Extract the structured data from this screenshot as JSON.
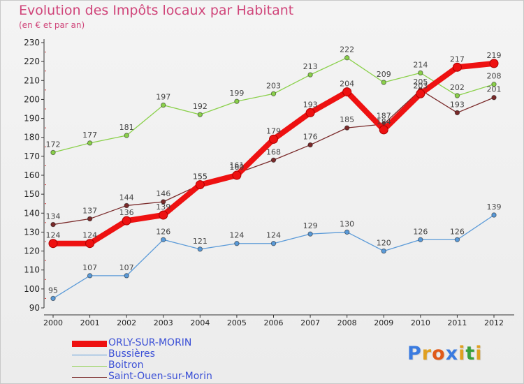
{
  "title": "Evolution des Impôts locaux par Habitant",
  "subtitle": "(en € et par an)",
  "logo": {
    "letters": [
      "P",
      "r",
      "o",
      "x",
      "i",
      "t",
      "i"
    ],
    "colors": [
      "#3a7be0",
      "#e0a020",
      "#e05a1a",
      "#3a7be0",
      "#e0a020",
      "#3aa03a",
      "#e0a020"
    ]
  },
  "chart_data": {
    "type": "line",
    "x": [
      "2000",
      "2001",
      "2002",
      "2003",
      "2004",
      "2005",
      "2006",
      "2007",
      "2008",
      "2009",
      "2010",
      "2011",
      "2012"
    ],
    "ylim": [
      90,
      230
    ],
    "yticks": [
      90,
      100,
      110,
      120,
      130,
      140,
      150,
      160,
      170,
      180,
      190,
      200,
      210,
      220,
      230
    ],
    "grid": false,
    "legend_position": "bottom-left",
    "series": [
      {
        "name": "Boitron",
        "color": "#8ad04a",
        "values": [
          172,
          177,
          181,
          197,
          192,
          199,
          203,
          213,
          222,
          209,
          214,
          202,
          208
        ]
      },
      {
        "name": "Saint-Ouen-sur-Morin",
        "color": "#7a2a2a",
        "values": [
          134,
          137,
          144,
          146,
          155,
          161,
          168,
          176,
          185,
          187,
          205,
          193,
          201
        ]
      },
      {
        "name": "Bussières",
        "color": "#5a9ad8",
        "values": [
          95,
          107,
          107,
          126,
          121,
          124,
          124,
          129,
          130,
          120,
          126,
          126,
          139
        ]
      },
      {
        "name": "ORLY-SUR-MORIN",
        "color": "#ee1111",
        "values": [
          124,
          124,
          136,
          139,
          155,
          160,
          179,
          193,
          204,
          184,
          203,
          217,
          219
        ]
      }
    ]
  },
  "legend": [
    {
      "label": "ORLY-SUR-MORIN",
      "color": "#ee1111"
    },
    {
      "label": "Bussières",
      "color": "#5a9ad8"
    },
    {
      "label": "Boitron",
      "color": "#8ad04a"
    },
    {
      "label": "Saint-Ouen-sur-Morin",
      "color": "#7a2a2a"
    }
  ]
}
